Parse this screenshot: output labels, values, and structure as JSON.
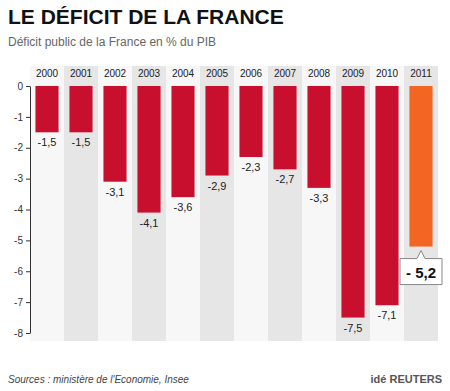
{
  "chart_data": {
    "type": "bar",
    "title": "LE DÉFICIT DE LA FRANCE",
    "subtitle": "Déficit public de la France en % du PIB",
    "categories": [
      "2000",
      "2001",
      "2002",
      "2003",
      "2004",
      "2005",
      "2006",
      "2007",
      "2008",
      "2009",
      "2010",
      "2011"
    ],
    "values": [
      -1.5,
      -1.5,
      -3.1,
      -4.1,
      -3.6,
      -2.9,
      -2.3,
      -2.7,
      -3.3,
      -7.5,
      -7.1,
      -5.2
    ],
    "value_labels": [
      "-1,5",
      "-1,5",
      "-3,1",
      "-4,1",
      "-3,6",
      "-2,9",
      "-2,3",
      "-2,7",
      "-3,3",
      "-7,5",
      "-7,1",
      "- 5,2"
    ],
    "colors": [
      "#c8102e",
      "#c8102e",
      "#c8102e",
      "#c8102e",
      "#c8102e",
      "#c8102e",
      "#c8102e",
      "#c8102e",
      "#c8102e",
      "#c8102e",
      "#c8102e",
      "#f26522"
    ],
    "ylim": [
      -8,
      0
    ],
    "yticks": [
      0,
      -1,
      -2,
      -3,
      -4,
      -5,
      -6,
      -7,
      -8
    ],
    "grid": false,
    "data_labels": true,
    "annotations": [
      "Sources : ministère de l'Economie, Insee",
      "idé REUTERS"
    ]
  }
}
